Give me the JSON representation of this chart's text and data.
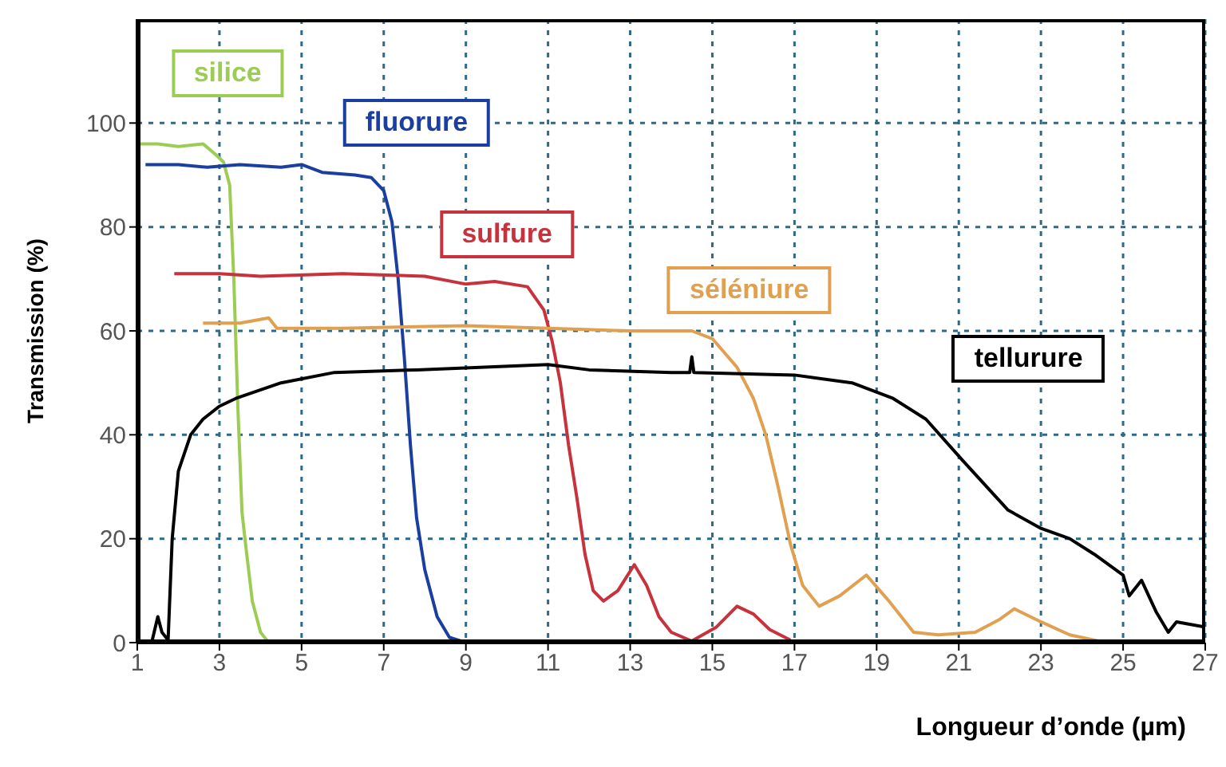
{
  "chart_data": {
    "type": "line",
    "xlabel": "Longueur d’onde (µm)",
    "ylabel": "Transmission (%)",
    "xlim": [
      1,
      27
    ],
    "xticks": [
      1,
      3,
      5,
      7,
      9,
      11,
      13,
      15,
      17,
      19,
      21,
      23,
      25,
      27
    ],
    "ylim": [
      0,
      120
    ],
    "yticks": [
      0,
      20,
      40,
      60,
      80,
      100
    ],
    "grid": true,
    "legend": false,
    "marker": "none",
    "line_style": "solid",
    "series": [
      {
        "name": "silice",
        "color": "#9ccc54",
        "x": [
          1,
          1.5,
          2,
          2.6,
          2.9,
          3.1,
          3.25,
          3.35,
          3.45,
          3.55,
          3.65,
          3.8,
          4,
          4.2
        ],
        "values": [
          96,
          96,
          95.5,
          96,
          94,
          92.5,
          88,
          70,
          45,
          25,
          18,
          8,
          2,
          0
        ]
      },
      {
        "name": "fluorure",
        "color": "#1a3fa0",
        "x": [
          1.2,
          2,
          2.7,
          3.5,
          4.5,
          5,
          5.5,
          6.3,
          6.7,
          7,
          7.2,
          7.35,
          7.5,
          7.65,
          7.8,
          8,
          8.3,
          8.6,
          9,
          10,
          11
        ],
        "values": [
          92,
          92,
          91.5,
          92,
          91.5,
          92,
          90.5,
          90,
          89.5,
          87,
          81,
          70,
          55,
          38,
          24,
          14,
          5,
          1,
          0,
          0,
          0
        ]
      },
      {
        "name": "sulfure",
        "color": "#c8323c",
        "x": [
          1.9,
          3,
          4,
          6,
          8,
          9,
          9.7,
          10.5,
          10.9,
          11.1,
          11.3,
          11.5,
          11.7,
          11.9,
          12.1,
          12.35,
          12.7,
          13.1,
          13.4,
          13.7,
          14,
          14.5,
          15.1,
          15.6,
          16,
          16.4,
          16.9
        ],
        "values": [
          71,
          71,
          70.5,
          71,
          70.5,
          69,
          69.5,
          68.5,
          64,
          58,
          50,
          38,
          28,
          17,
          10,
          8,
          10,
          15,
          11,
          5,
          2,
          0.3,
          3,
          7,
          5.5,
          2.5,
          0.5
        ]
      },
      {
        "name": "séléniure",
        "color": "#e0a050",
        "x": [
          2.6,
          3.5,
          4.2,
          4.4,
          6,
          9,
          11,
          13,
          14.5,
          15,
          15.6,
          16,
          16.3,
          16.6,
          16.9,
          17.2,
          17.6,
          18.1,
          18.75,
          19.3,
          19.9,
          20.5,
          21.4,
          22,
          22.35,
          23,
          23.7,
          24.4
        ],
        "values": [
          61.5,
          61.5,
          62.5,
          60.5,
          60.5,
          61,
          60.5,
          60,
          60,
          58.5,
          53,
          47,
          40,
          30,
          19,
          11,
          7,
          9,
          13,
          8,
          2,
          1.5,
          2,
          4.5,
          6.5,
          4,
          1.5,
          0.3
        ]
      },
      {
        "name": "tellurure",
        "color": "#000000",
        "x": [
          1.35,
          1.5,
          1.6,
          1.75,
          1.85,
          2,
          2.3,
          2.6,
          3,
          3.4,
          4.5,
          5.8,
          7.8,
          11,
          12,
          14,
          14.45,
          14.5,
          14.55,
          17,
          18.4,
          19.4,
          20.2,
          21.1,
          22.2,
          23,
          23.7,
          24.3,
          25,
          25.15,
          25.45,
          25.8,
          26.1,
          26.3,
          27
        ],
        "values": [
          0,
          5,
          2,
          0.5,
          20,
          33,
          40,
          43,
          45.5,
          47,
          50,
          52,
          52.5,
          53.5,
          52.5,
          52,
          52,
          55,
          52,
          51.5,
          50,
          47,
          43,
          35,
          25.5,
          22,
          20,
          17,
          13,
          9,
          12,
          6,
          2,
          4,
          3
        ]
      }
    ]
  }
}
